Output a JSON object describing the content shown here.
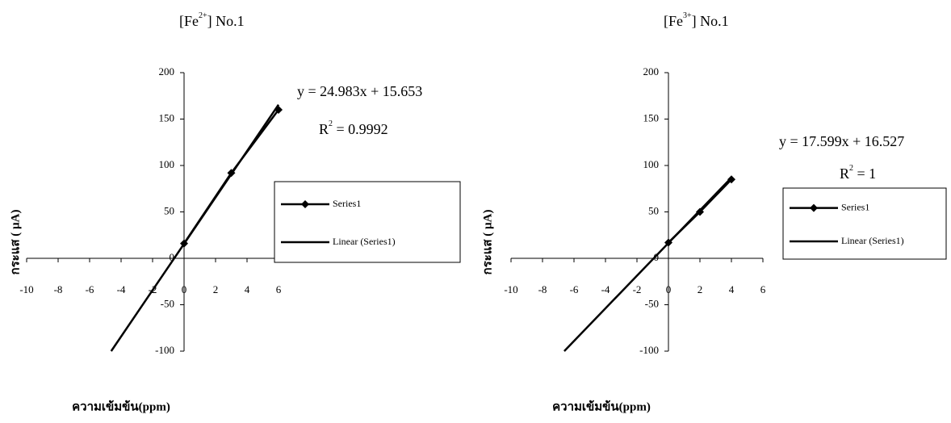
{
  "chart_data": [
    {
      "type": "line",
      "title": {
        "text": "[Fe",
        "sup": "2+",
        "tail": "] No.1"
      },
      "x_label": "ความเข้มข้น(ppm)",
      "y_label": "กระแส ( µA)",
      "equation": "y = 24.983x + 15.653",
      "r2": {
        "text": "R",
        "sup": "2",
        "tail": " = 0.9992"
      },
      "xlim": [
        -10,
        6
      ],
      "xticks": [
        -10,
        -8,
        -6,
        -4,
        -2,
        0,
        2,
        4,
        6
      ],
      "ylim": [
        -100,
        200
      ],
      "yticks": [
        -100,
        -50,
        0,
        50,
        100,
        150,
        200
      ],
      "series": [
        {
          "name": "Series1",
          "color": "#000000",
          "marker": "diamond",
          "x": [
            0,
            3,
            6
          ],
          "values": [
            16,
            92,
            160
          ]
        },
        {
          "name": "Linear (Series1)",
          "color": "#000000",
          "x": [
            -4.63,
            6
          ],
          "values": [
            -100,
            165.5
          ]
        }
      ]
    },
    {
      "type": "line",
      "title": {
        "text": "[Fe",
        "sup": "3+",
        "tail": "] No.1"
      },
      "x_label": "ความเข้มข้น(ppm)",
      "y_label": "กระแส ( µA)",
      "equation": "y = 17.599x + 16.527",
      "r2": {
        "text": "R",
        "sup": "2",
        "tail": " = 1"
      },
      "xlim": [
        -10,
        6
      ],
      "xticks": [
        -10,
        -8,
        -6,
        -4,
        -2,
        0,
        2,
        4,
        6
      ],
      "ylim": [
        -100,
        200
      ],
      "yticks": [
        -100,
        -50,
        0,
        50,
        100,
        150,
        200
      ],
      "series": [
        {
          "name": "Series1",
          "color": "#000000",
          "marker": "diamond",
          "x": [
            0,
            2,
            4
          ],
          "values": [
            17,
            50,
            85
          ]
        },
        {
          "name": "Linear (Series1)",
          "color": "#000000",
          "x": [
            -6.62,
            4
          ],
          "values": [
            -100,
            86.9
          ]
        }
      ]
    }
  ]
}
